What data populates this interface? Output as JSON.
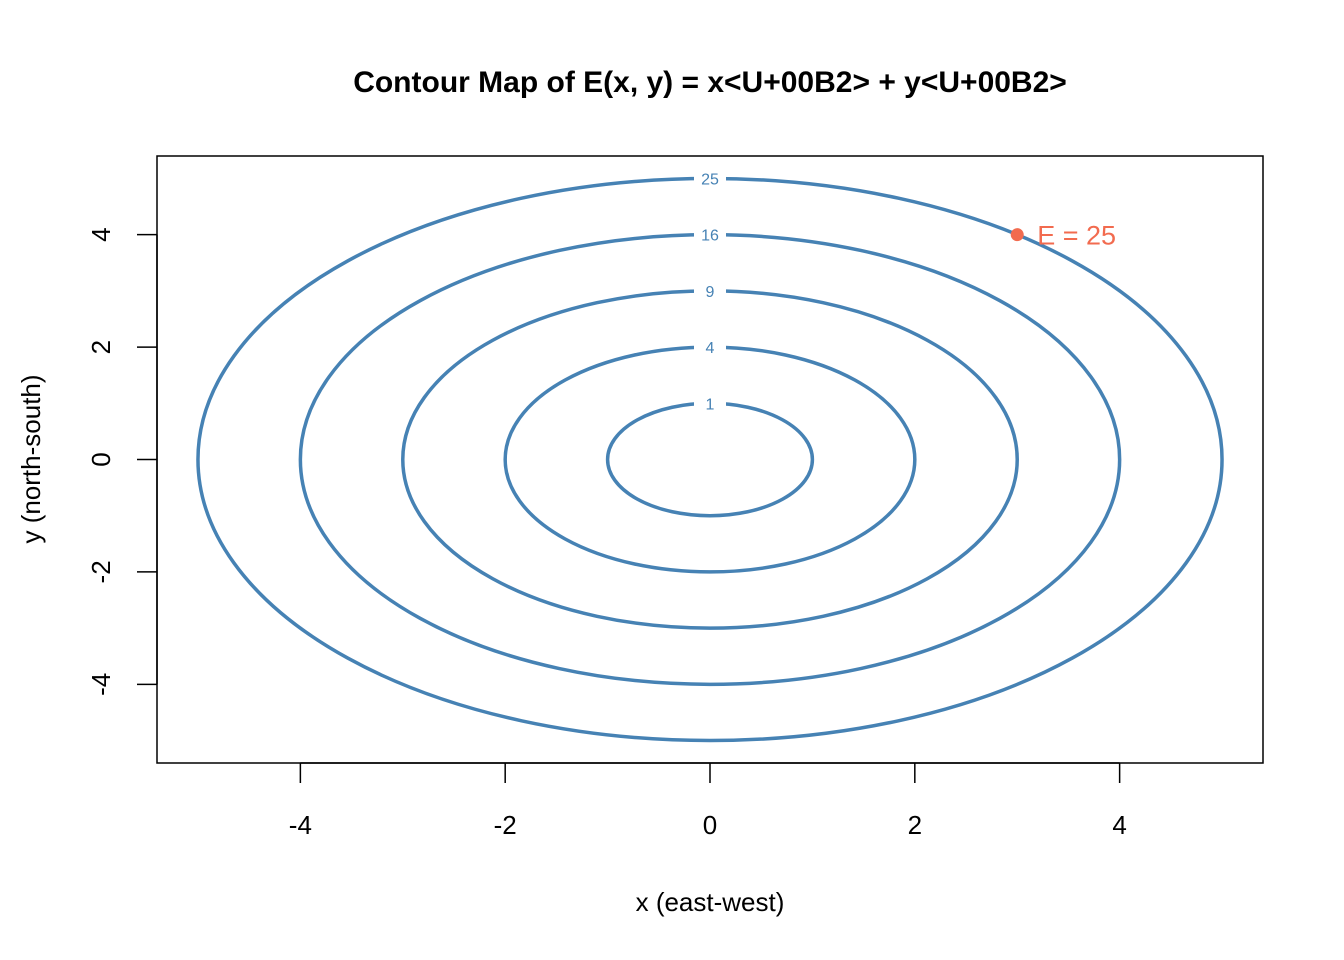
{
  "chart_data": {
    "type": "contour",
    "title": "Contour Map of E(x, y) = x<U+00B2> + y<U+00B2>",
    "xlabel": "x (east-west)",
    "ylabel": "y (north-south)",
    "xlim": [
      -5.4,
      5.4
    ],
    "ylim": [
      -5.4,
      5.4
    ],
    "xticks": [
      -4,
      -2,
      0,
      2,
      4
    ],
    "yticks": [
      -4,
      -2,
      0,
      2,
      4
    ],
    "grid": false,
    "levels": [
      1,
      4,
      9,
      16,
      25
    ],
    "contour_color": "#4682B4",
    "annotation": {
      "x": 3,
      "y": 4,
      "label": "E = 25",
      "color": "#F26B4F"
    }
  }
}
